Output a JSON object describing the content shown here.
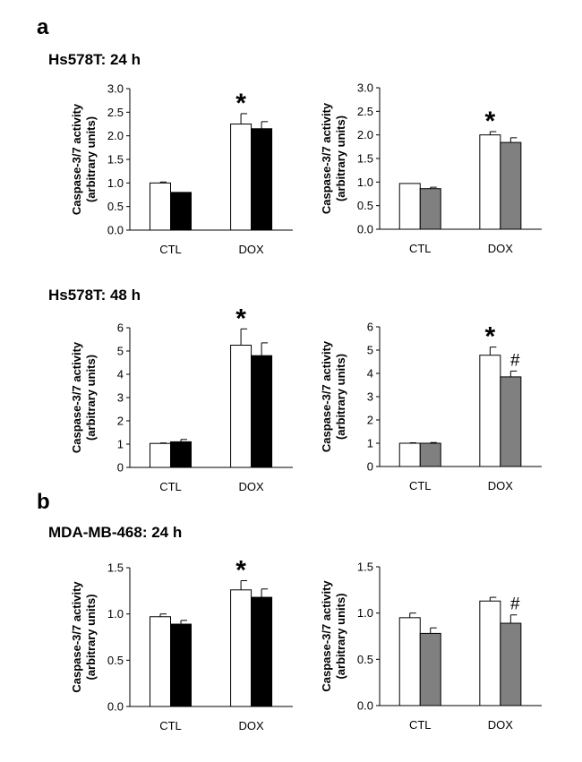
{
  "panels": [
    {
      "letter": "a"
    },
    {
      "letter": "b"
    }
  ],
  "row_titles": [
    "Hs578T: 24 h",
    "Hs578T: 48 h",
    "MDA-MB-468: 24 h"
  ],
  "colors": {
    "white": "#ffffff",
    "black": "#000000",
    "gray": "#808080"
  },
  "chart_data": [
    {
      "type": "bar",
      "ylabel": [
        "Caspase-3/7 activity",
        "(arbitrary units)"
      ],
      "categories": [
        "CTL",
        "DOX"
      ],
      "ylim": [
        0,
        3.0
      ],
      "yticks": [
        0.0,
        0.5,
        1.0,
        1.5,
        2.0,
        2.5,
        3.0
      ],
      "tick_decimals": 1,
      "series": [
        {
          "color": "#ffffff",
          "values": [
            1.0,
            2.25
          ],
          "errors": [
            0.02,
            0.22
          ]
        },
        {
          "color": "#000000",
          "values": [
            0.8,
            2.15
          ],
          "errors": [
            0.0,
            0.15
          ]
        }
      ],
      "marks": [
        {
          "category": 1,
          "series": 0,
          "text": "*"
        }
      ]
    },
    {
      "type": "bar",
      "ylabel": [
        "Caspase-3/7 activity",
        "(arbitrary units)"
      ],
      "categories": [
        "CTL",
        "DOX"
      ],
      "ylim": [
        0,
        3.0
      ],
      "yticks": [
        0.0,
        0.5,
        1.0,
        1.5,
        2.0,
        2.5,
        3.0
      ],
      "tick_decimals": 1,
      "series": [
        {
          "color": "#ffffff",
          "values": [
            0.97,
            2.0
          ],
          "errors": [
            0.0,
            0.07
          ]
        },
        {
          "color": "#808080",
          "values": [
            0.86,
            1.84
          ],
          "errors": [
            0.03,
            0.1
          ]
        }
      ],
      "marks": [
        {
          "category": 1,
          "series": 0,
          "text": "*"
        }
      ]
    },
    {
      "type": "bar",
      "ylabel": [
        "Caspase-3/7 activity",
        "(arbitrary units)"
      ],
      "categories": [
        "CTL",
        "DOX"
      ],
      "ylim": [
        0,
        6
      ],
      "yticks": [
        0,
        1,
        2,
        3,
        4,
        5,
        6
      ],
      "tick_decimals": 0,
      "series": [
        {
          "color": "#ffffff",
          "values": [
            1.03,
            5.25
          ],
          "errors": [
            0.02,
            0.7
          ]
        },
        {
          "color": "#000000",
          "values": [
            1.1,
            4.8
          ],
          "errors": [
            0.1,
            0.55
          ]
        }
      ],
      "marks": [
        {
          "category": 1,
          "series": 0,
          "text": "*"
        }
      ]
    },
    {
      "type": "bar",
      "ylabel": [
        "Caspase-3/7 activity",
        "(arbitrary units)"
      ],
      "categories": [
        "CTL",
        "DOX"
      ],
      "ylim": [
        0,
        6
      ],
      "yticks": [
        0,
        1,
        2,
        3,
        4,
        5,
        6
      ],
      "tick_decimals": 0,
      "series": [
        {
          "color": "#ffffff",
          "values": [
            1.0,
            4.78
          ],
          "errors": [
            0.02,
            0.35
          ]
        },
        {
          "color": "#808080",
          "values": [
            1.0,
            3.85
          ],
          "errors": [
            0.03,
            0.25
          ]
        }
      ],
      "marks": [
        {
          "category": 1,
          "series": 0,
          "text": "*"
        },
        {
          "category": 1,
          "series": 1,
          "text": "#"
        }
      ]
    },
    {
      "type": "bar",
      "ylabel": [
        "Caspase-3/7 activity",
        "(arbitrary units)"
      ],
      "categories": [
        "CTL",
        "DOX"
      ],
      "ylim": [
        0,
        1.5
      ],
      "yticks": [
        0.0,
        0.5,
        1.0,
        1.5
      ],
      "tick_decimals": 1,
      "series": [
        {
          "color": "#ffffff",
          "values": [
            0.97,
            1.26
          ],
          "errors": [
            0.03,
            0.1
          ]
        },
        {
          "color": "#000000",
          "values": [
            0.89,
            1.18
          ],
          "errors": [
            0.04,
            0.09
          ]
        }
      ],
      "marks": [
        {
          "category": 1,
          "series": 0,
          "text": "*"
        }
      ]
    },
    {
      "type": "bar",
      "ylabel": [
        "Caspase-3/7 activity",
        "(arbitrary units)"
      ],
      "categories": [
        "CTL",
        "DOX"
      ],
      "ylim": [
        0,
        1.5
      ],
      "yticks": [
        0.0,
        0.5,
        1.0,
        1.5
      ],
      "tick_decimals": 1,
      "series": [
        {
          "color": "#ffffff",
          "values": [
            0.95,
            1.13
          ],
          "errors": [
            0.05,
            0.04
          ]
        },
        {
          "color": "#808080",
          "values": [
            0.78,
            0.89
          ],
          "errors": [
            0.06,
            0.09
          ]
        }
      ],
      "marks": [
        {
          "category": 1,
          "series": 1,
          "text": "#"
        }
      ]
    }
  ]
}
